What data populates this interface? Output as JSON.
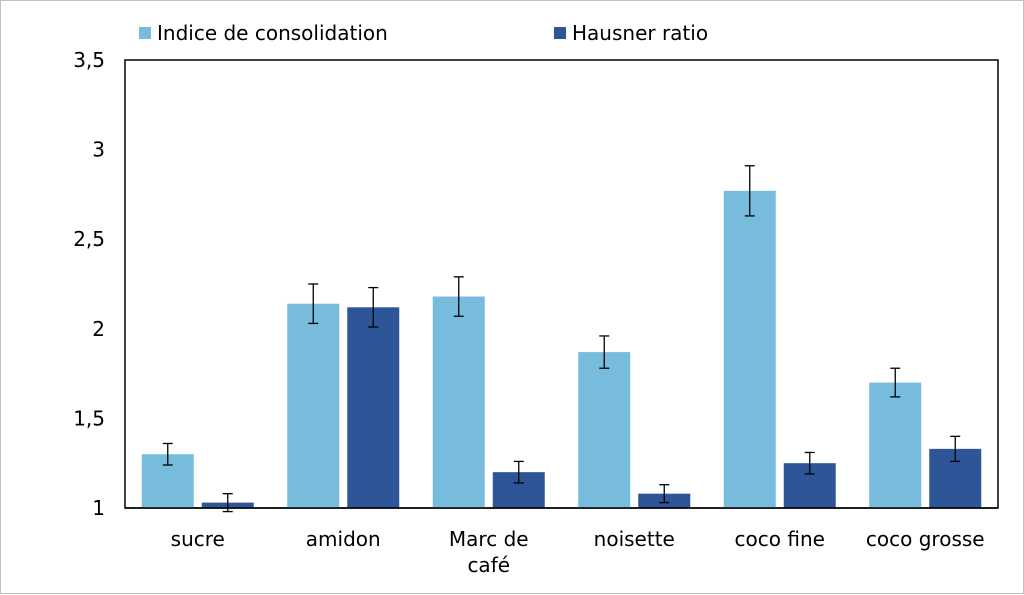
{
  "chart_data": {
    "type": "bar",
    "title": "",
    "xlabel": "",
    "ylabel": "",
    "ylim": [
      1,
      3.5
    ],
    "yticks": [
      {
        "value": 1,
        "label": "1"
      },
      {
        "value": 1.5,
        "label": "1,5"
      },
      {
        "value": 2,
        "label": "2"
      },
      {
        "value": 2.5,
        "label": "2,5"
      },
      {
        "value": 3,
        "label": "3"
      },
      {
        "value": 3.5,
        "label": "3,5"
      }
    ],
    "categories": [
      "sucre",
      "amidon",
      "Marc de café",
      "noisette",
      "coco fine",
      "coco grosse"
    ],
    "category_lines": [
      [
        "sucre"
      ],
      [
        "amidon"
      ],
      [
        "Marc de",
        "café"
      ],
      [
        "noisette"
      ],
      [
        "coco fine"
      ],
      [
        "coco grosse"
      ]
    ],
    "series": [
      {
        "name": "Indice de consolidation",
        "color": "#77bbdd",
        "values": [
          1.3,
          2.14,
          2.18,
          1.87,
          2.77,
          1.7
        ],
        "errors": [
          0.06,
          0.11,
          0.11,
          0.09,
          0.14,
          0.08
        ]
      },
      {
        "name": "Hausner ratio",
        "color": "#2e5597",
        "values": [
          1.03,
          2.12,
          1.2,
          1.08,
          1.25,
          1.33
        ],
        "errors": [
          0.05,
          0.11,
          0.06,
          0.05,
          0.06,
          0.07
        ]
      }
    ],
    "grid": false,
    "legend_position": "top"
  }
}
